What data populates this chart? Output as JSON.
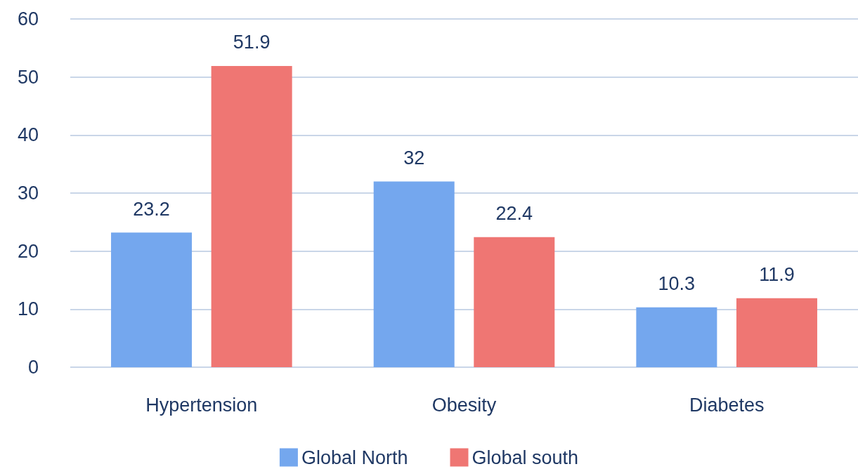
{
  "chart_data": {
    "type": "bar",
    "categories": [
      "Hypertension",
      "Obesity",
      "Diabetes"
    ],
    "series": [
      {
        "name": "Global North",
        "color": "#74a7ee",
        "values": [
          23.2,
          32,
          10.3
        ]
      },
      {
        "name": "Global south",
        "color": "#ef7673",
        "values": [
          51.9,
          22.4,
          11.9
        ]
      }
    ],
    "ylim": [
      0,
      60
    ],
    "yticks": [
      0,
      10,
      20,
      30,
      40,
      50,
      60
    ],
    "grid": "y",
    "legend": "bottom",
    "data_labels": true
  }
}
